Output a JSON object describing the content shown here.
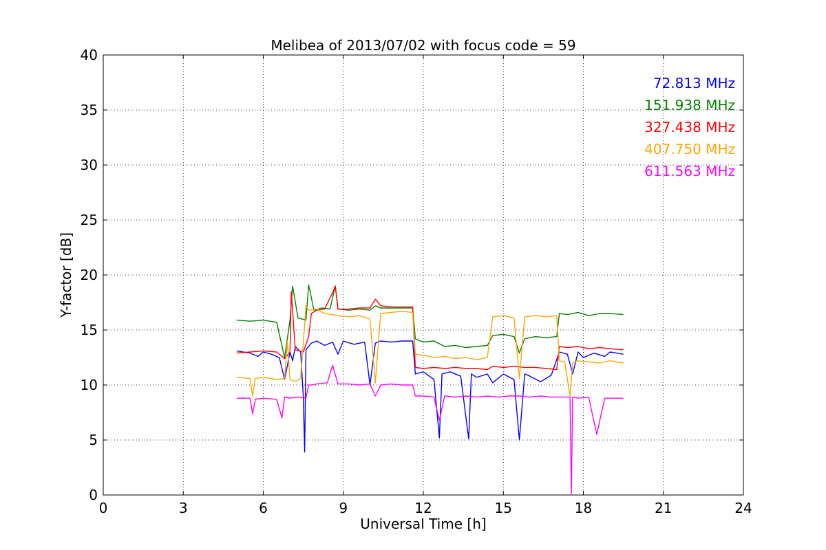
{
  "chart_data": {
    "type": "line",
    "title": "Melibea of 2013/07/02 with focus code = 59",
    "xlabel": "Universal Time [h]",
    "ylabel": "Y-factor [dB]",
    "xlim": [
      0,
      24
    ],
    "ylim": [
      0,
      40
    ],
    "xticks": [
      0,
      3,
      6,
      9,
      12,
      15,
      18,
      21,
      24
    ],
    "yticks": [
      0,
      5,
      10,
      15,
      20,
      25,
      30,
      35,
      40
    ],
    "grid": true,
    "legend_placement": "top-right",
    "series": [
      {
        "name": "72.813 MHz",
        "color": "#0000ff",
        "x": [
          5.0,
          5.5,
          5.8,
          6.0,
          6.3,
          6.6,
          6.8,
          7.0,
          7.1,
          7.2,
          7.4,
          7.5,
          7.55,
          7.6,
          7.8,
          8.0,
          8.3,
          8.6,
          8.8,
          9.0,
          9.4,
          9.8,
          10.0,
          10.2,
          10.4,
          10.8,
          11.2,
          11.6,
          11.7,
          12.0,
          12.4,
          12.6,
          12.7,
          13.0,
          13.4,
          13.7,
          13.8,
          14.0,
          14.4,
          14.6,
          15.0,
          15.4,
          15.6,
          15.8,
          16.0,
          16.4,
          16.8,
          17.1,
          17.4,
          17.6,
          17.8,
          18.0,
          18.4,
          18.8,
          19.0,
          19.5
        ],
        "y": [
          13.1,
          12.9,
          12.6,
          13.0,
          12.8,
          12.5,
          10.5,
          13.0,
          12.2,
          13.5,
          13.0,
          9.0,
          3.9,
          13.2,
          13.8,
          14.0,
          13.6,
          13.9,
          12.8,
          14.0,
          13.7,
          13.9,
          10.0,
          13.8,
          14.0,
          13.9,
          14.0,
          14.0,
          11.0,
          11.2,
          10.5,
          5.2,
          11.0,
          11.2,
          10.8,
          5.1,
          11.0,
          10.7,
          11.0,
          10.2,
          11.0,
          10.5,
          5.0,
          11.0,
          10.8,
          10.3,
          10.9,
          13.0,
          12.8,
          11.0,
          13.0,
          12.5,
          12.9,
          12.6,
          13.0,
          12.8
        ]
      },
      {
        "name": "151.938 MHz",
        "color": "#008000",
        "x": [
          5.0,
          5.5,
          6.0,
          6.5,
          6.8,
          7.0,
          7.1,
          7.3,
          7.6,
          7.7,
          7.9,
          8.2,
          8.5,
          8.7,
          8.8,
          9.2,
          9.6,
          10.0,
          10.2,
          10.4,
          10.8,
          11.2,
          11.6,
          11.7,
          12.0,
          12.4,
          12.8,
          13.2,
          13.6,
          14.0,
          14.4,
          14.6,
          15.0,
          15.4,
          15.6,
          15.8,
          16.2,
          16.6,
          17.0,
          17.1,
          17.4,
          17.8,
          18.2,
          18.6,
          19.0,
          19.5
        ],
        "y": [
          15.9,
          15.8,
          15.9,
          15.7,
          12.5,
          15.9,
          19.0,
          16.1,
          15.9,
          19.1,
          16.8,
          17.0,
          16.9,
          19.0,
          16.9,
          16.8,
          16.9,
          16.8,
          17.2,
          17.0,
          17.0,
          17.0,
          17.0,
          14.2,
          13.9,
          14.0,
          13.5,
          13.6,
          13.4,
          13.5,
          13.6,
          14.5,
          14.6,
          14.4,
          12.9,
          14.2,
          14.4,
          14.3,
          14.4,
          16.5,
          16.4,
          16.6,
          16.3,
          16.5,
          16.5,
          16.4
        ]
      },
      {
        "name": "327.438 MHz",
        "color": "#ff0000",
        "x": [
          5.0,
          5.5,
          6.0,
          6.5,
          6.8,
          7.0,
          7.05,
          7.2,
          7.5,
          7.7,
          7.8,
          8.0,
          8.3,
          8.6,
          8.7,
          8.8,
          9.2,
          9.6,
          10.0,
          10.2,
          10.4,
          10.8,
          11.2,
          11.6,
          11.7,
          12.0,
          12.4,
          12.8,
          13.2,
          13.6,
          14.0,
          14.4,
          14.6,
          15.0,
          15.4,
          15.8,
          16.2,
          16.6,
          17.0,
          17.1,
          17.4,
          17.8,
          18.2,
          18.6,
          19.0,
          19.5
        ],
        "y": [
          12.9,
          13.0,
          13.1,
          13.0,
          12.4,
          13.0,
          18.5,
          13.2,
          13.0,
          14.4,
          16.5,
          16.8,
          16.9,
          18.4,
          19.0,
          16.9,
          16.9,
          17.0,
          17.0,
          17.8,
          17.2,
          17.1,
          17.1,
          17.1,
          11.6,
          11.5,
          11.6,
          11.5,
          11.6,
          11.5,
          11.5,
          11.4,
          11.7,
          11.6,
          11.7,
          11.6,
          11.6,
          11.5,
          11.4,
          13.5,
          13.4,
          13.5,
          13.3,
          13.4,
          13.3,
          13.2
        ]
      },
      {
        "name": "407.750 MHz",
        "color": "#ffa500",
        "x": [
          5.0,
          5.5,
          5.6,
          5.7,
          6.0,
          6.5,
          6.8,
          6.9,
          7.0,
          7.2,
          7.4,
          7.6,
          7.7,
          8.0,
          8.3,
          8.6,
          8.8,
          9.2,
          9.6,
          10.0,
          10.2,
          10.4,
          10.8,
          11.2,
          11.6,
          11.7,
          12.0,
          12.4,
          12.8,
          13.2,
          13.6,
          14.0,
          14.4,
          14.6,
          15.0,
          15.4,
          15.6,
          15.8,
          16.2,
          16.6,
          17.0,
          17.1,
          17.3,
          17.5,
          17.6,
          17.8,
          18.2,
          18.6,
          19.0,
          19.5
        ],
        "y": [
          10.7,
          10.6,
          9.0,
          10.6,
          10.7,
          10.5,
          10.6,
          14.0,
          10.5,
          10.3,
          10.6,
          17.2,
          16.8,
          16.9,
          16.5,
          16.4,
          16.3,
          16.2,
          16.3,
          16.0,
          10.2,
          16.5,
          16.6,
          16.7,
          16.6,
          12.8,
          12.7,
          12.5,
          12.6,
          12.4,
          12.5,
          12.3,
          12.5,
          16.2,
          16.3,
          16.1,
          10.6,
          16.2,
          16.3,
          16.2,
          16.3,
          12.2,
          12.1,
          9.0,
          12.0,
          12.2,
          12.1,
          12.0,
          12.2,
          12.0
        ]
      },
      {
        "name": "611.563 MHz",
        "color": "#ff00ff",
        "x": [
          5.0,
          5.5,
          5.6,
          5.7,
          6.0,
          6.5,
          6.7,
          6.8,
          7.0,
          7.3,
          7.6,
          7.7,
          7.8,
          8.0,
          8.4,
          8.6,
          8.8,
          9.2,
          9.6,
          10.0,
          10.2,
          10.4,
          10.8,
          11.2,
          11.6,
          11.7,
          12.0,
          12.4,
          12.6,
          12.8,
          13.2,
          13.6,
          14.0,
          14.4,
          14.8,
          15.2,
          15.6,
          16.0,
          16.4,
          16.8,
          17.2,
          17.5,
          17.55,
          17.6,
          17.8,
          18.2,
          18.5,
          18.8,
          19.2,
          19.5
        ],
        "y": [
          8.8,
          8.8,
          7.4,
          8.7,
          8.8,
          8.7,
          7.0,
          8.9,
          8.8,
          8.9,
          8.8,
          10.0,
          10.0,
          10.1,
          10.2,
          11.8,
          10.1,
          10.1,
          10.0,
          10.1,
          9.0,
          10.0,
          10.1,
          10.0,
          10.0,
          9.0,
          9.0,
          8.9,
          6.8,
          9.0,
          8.9,
          9.0,
          8.9,
          9.0,
          8.9,
          9.0,
          9.0,
          8.9,
          9.0,
          8.9,
          8.9,
          8.9,
          0.1,
          8.9,
          8.8,
          8.9,
          5.5,
          8.8,
          8.8,
          8.8
        ]
      }
    ]
  }
}
